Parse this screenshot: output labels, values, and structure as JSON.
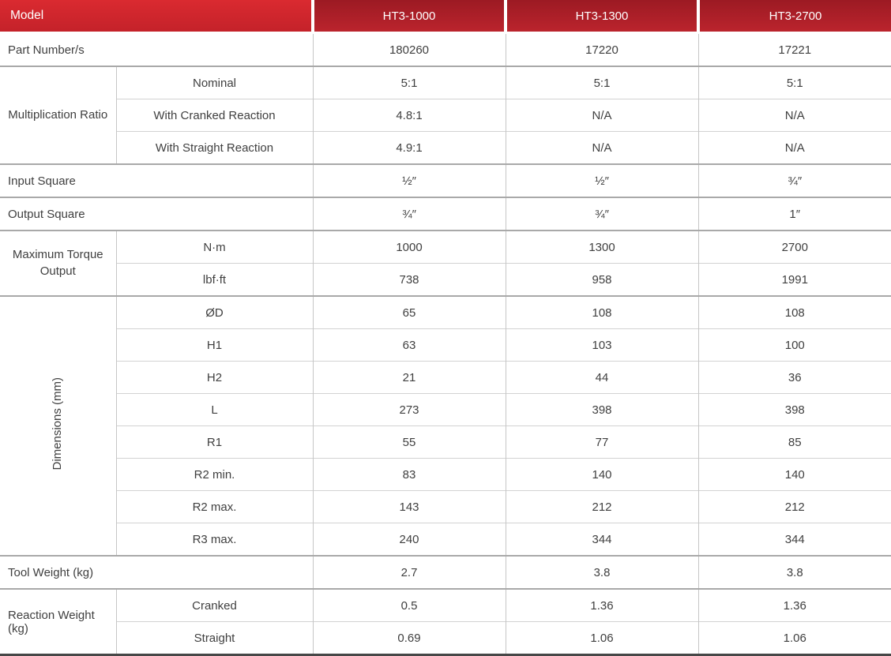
{
  "table": {
    "header": {
      "model_label": "Model",
      "columns": [
        "HT3-1000",
        "HT3-1300",
        "HT3-2700"
      ]
    },
    "rows": {
      "part_number": {
        "label": "Part Number/s",
        "values": [
          "180260",
          "17220",
          "17221"
        ]
      },
      "multiplication_ratio": {
        "label": "Multiplication Ratio",
        "subrows": [
          {
            "label": "Nominal",
            "values": [
              "5:1",
              "5:1",
              "5:1"
            ]
          },
          {
            "label": "With Cranked Reaction",
            "values": [
              "4.8:1",
              "N/A",
              "N/A"
            ]
          },
          {
            "label": "With Straight Reaction",
            "values": [
              "4.9:1",
              "N/A",
              "N/A"
            ]
          }
        ]
      },
      "input_square": {
        "label": "Input Square",
        "values": [
          "½″",
          "½″",
          "¾″"
        ]
      },
      "output_square": {
        "label": "Output Square",
        "values": [
          "¾″",
          "¾″",
          "1″"
        ]
      },
      "max_torque": {
        "label": "Maximum Torque Output",
        "subrows": [
          {
            "label": "N·m",
            "values": [
              "1000",
              "1300",
              "2700"
            ]
          },
          {
            "label": "lbf·ft",
            "values": [
              "738",
              "958",
              "1991"
            ]
          }
        ]
      },
      "dimensions": {
        "label": "Dimensions (mm)",
        "subrows": [
          {
            "label": "ØD",
            "values": [
              "65",
              "108",
              "108"
            ]
          },
          {
            "label": "H1",
            "values": [
              "63",
              "103",
              "100"
            ]
          },
          {
            "label": "H2",
            "values": [
              "21",
              "44",
              "36"
            ]
          },
          {
            "label": "L",
            "values": [
              "273",
              "398",
              "398"
            ]
          },
          {
            "label": "R1",
            "values": [
              "55",
              "77",
              "85"
            ]
          },
          {
            "label": "R2 min.",
            "values": [
              "83",
              "140",
              "140"
            ]
          },
          {
            "label": "R2 max.",
            "values": [
              "143",
              "212",
              "212"
            ]
          },
          {
            "label": "R3 max.",
            "values": [
              "240",
              "344",
              "344"
            ]
          }
        ]
      },
      "tool_weight": {
        "label": "Tool Weight (kg)",
        "values": [
          "2.7",
          "3.8",
          "3.8"
        ]
      },
      "reaction_weight": {
        "label": "Reaction Weight (kg)",
        "subrows": [
          {
            "label": "Cranked",
            "values": [
              "0.5",
              "1.36",
              "1.36"
            ]
          },
          {
            "label": "Straight",
            "values": [
              "0.69",
              "1.06",
              "1.06"
            ]
          }
        ]
      }
    },
    "colors": {
      "header_model_red": "#d5282e",
      "header_column_red_top": "#9c1a23",
      "header_column_red_bottom": "#bb242d",
      "border_gray": "#c6c6c6",
      "section_border_gray": "#a9a9a9",
      "bottom_border_dark": "#474747"
    }
  }
}
